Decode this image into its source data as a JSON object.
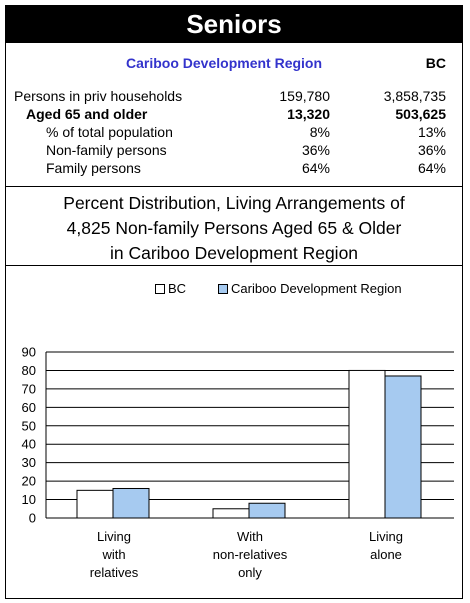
{
  "title": "Seniors",
  "stats": {
    "col_region": "Cariboo Development Region",
    "col_bc": "BC",
    "rows": [
      {
        "label": "Persons in priv households",
        "region": "159,780",
        "bc": "3,858,735"
      },
      {
        "label": "Aged 65 and older",
        "region": "13,320",
        "bc": "503,625"
      },
      {
        "label": "% of total population",
        "region": "8%",
        "bc": "13%"
      },
      {
        "label": "Non-family persons",
        "region": "36%",
        "bc": "36%"
      },
      {
        "label": "Family persons",
        "region": "64%",
        "bc": "64%"
      }
    ]
  },
  "subtitle": {
    "line1": "Percent Distribution, Living Arrangements of",
    "line2": "4,825 Non-family Persons Aged 65 & Older",
    "line3": "in Cariboo Development Region"
  },
  "chart_data": {
    "type": "bar",
    "title": "Percent Distribution, Living Arrangements of 4,825 Non-family Persons Aged 65 & Older in Cariboo Development Region",
    "categories": [
      [
        "Living",
        "with",
        "relatives"
      ],
      [
        "With",
        "non-relatives",
        "only"
      ],
      [
        "Living",
        "alone"
      ]
    ],
    "series": [
      {
        "name": "BC",
        "values": [
          15,
          5,
          80
        ],
        "color": "#ffffff"
      },
      {
        "name": "Cariboo Development Region",
        "values": [
          16,
          8,
          77
        ],
        "color": "#a6caf0"
      }
    ],
    "ylim": [
      0,
      90
    ],
    "yticks": [
      0,
      10,
      20,
      30,
      40,
      50,
      60,
      70,
      80,
      90
    ],
    "grid": true,
    "legend": "top"
  }
}
